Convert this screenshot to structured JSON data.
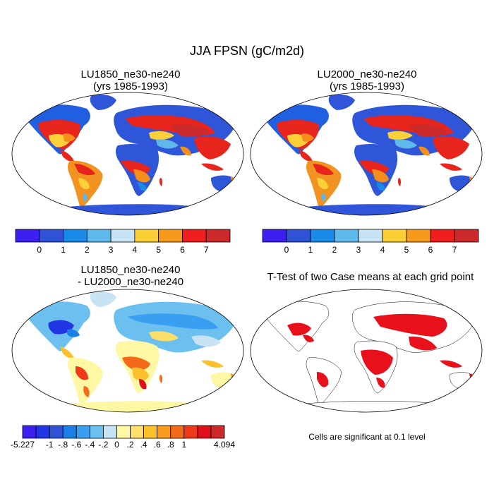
{
  "figure_title": "JJA FPSN (gC/m2d)",
  "panels": [
    {
      "title": "LU1850_ne30-ne240",
      "subtitle": "(yrs 1985-1993)"
    },
    {
      "title": "LU2000_ne30-ne240",
      "subtitle": "(yrs 1985-1993)"
    },
    {
      "title": "LU1850_ne30-ne240",
      "subtitle": "- LU2000_ne30-ne240"
    },
    {
      "title": "T-Test of two Case means at each grid point",
      "subtitle": ""
    }
  ],
  "colorbar_top": {
    "colors": [
      "#3b1ef0",
      "#2f52d6",
      "#1a8ae6",
      "#5fb8ea",
      "#c8e4f4",
      "#fcd034",
      "#f79a1c",
      "#f01e1e",
      "#cc2a2a"
    ],
    "tick_labels": [
      "0",
      "1",
      "2",
      "3",
      "4",
      "5",
      "6",
      "7"
    ]
  },
  "colorbar_diff": {
    "colors": [
      "#3b1ef0",
      "#2236e6",
      "#2f52d6",
      "#1a7fe6",
      "#3a9ff0",
      "#6cc0f0",
      "#c8e4f4",
      "#fef7a4",
      "#fde06c",
      "#fcc02c",
      "#f89a1c",
      "#f46a1a",
      "#ee3a1a",
      "#e0101a",
      "#cc2a2a"
    ],
    "tick_labels": [
      "-5.227",
      "-1",
      "-.8",
      "-.6",
      "-.4",
      "-.2",
      "0",
      ".2",
      ".4",
      ".6",
      ".8",
      "1",
      "4.094"
    ]
  },
  "note": "Cells are significant at 0.1 level"
}
